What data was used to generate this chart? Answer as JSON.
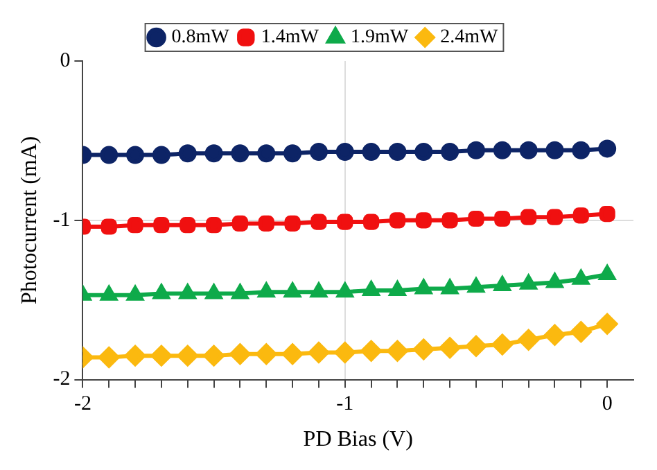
{
  "chart_data": {
    "type": "line",
    "xlabel": "PD Bias (V)",
    "ylabel": "Photocurrent (mA)",
    "x": [
      -2,
      -1.9,
      -1.8,
      -1.7,
      -1.6,
      -1.5,
      -1.4,
      -1.3,
      -1.2,
      -1.1,
      -1,
      -0.9,
      -0.8,
      -0.7,
      -0.6,
      -0.5,
      -0.4,
      -0.3,
      -0.2,
      -0.1,
      0
    ],
    "series": [
      {
        "name": "0.8mW",
        "color": "#0d2466",
        "marker": "circle",
        "values": [
          -0.59,
          -0.59,
          -0.59,
          -0.59,
          -0.58,
          -0.58,
          -0.58,
          -0.58,
          -0.58,
          -0.57,
          -0.57,
          -0.57,
          -0.57,
          -0.57,
          -0.57,
          -0.56,
          -0.56,
          -0.56,
          -0.56,
          -0.56,
          -0.55
        ]
      },
      {
        "name": "1.4mW",
        "color": "#f01010",
        "marker": "square",
        "values": [
          -1.04,
          -1.04,
          -1.03,
          -1.03,
          -1.03,
          -1.03,
          -1.02,
          -1.02,
          -1.02,
          -1.01,
          -1.01,
          -1.01,
          -1.0,
          -1.0,
          -1.0,
          -0.99,
          -0.99,
          -0.98,
          -0.98,
          -0.97,
          -0.96
        ]
      },
      {
        "name": "1.9mW",
        "color": "#0eaa4a",
        "marker": "triangle",
        "values": [
          -1.47,
          -1.47,
          -1.47,
          -1.46,
          -1.46,
          -1.46,
          -1.46,
          -1.45,
          -1.45,
          -1.45,
          -1.45,
          -1.44,
          -1.44,
          -1.43,
          -1.43,
          -1.42,
          -1.41,
          -1.4,
          -1.39,
          -1.37,
          -1.34
        ]
      },
      {
        "name": "2.4mW",
        "color": "#fbb90f",
        "marker": "diamond",
        "values": [
          -1.86,
          -1.86,
          -1.85,
          -1.85,
          -1.85,
          -1.85,
          -1.84,
          -1.84,
          -1.84,
          -1.83,
          -1.83,
          -1.82,
          -1.82,
          -1.81,
          -1.8,
          -1.79,
          -1.78,
          -1.75,
          -1.72,
          -1.7,
          -1.65
        ]
      }
    ],
    "xlim": [
      -2,
      0.1
    ],
    "xticks": [
      -2,
      {
        "value": -1.9,
        "label": null
      },
      {
        "value": -1.8,
        "label": null
      },
      {
        "value": -1.7,
        "label": null
      },
      {
        "value": -1.6,
        "label": null
      },
      {
        "value": -1.5,
        "label": null
      },
      {
        "value": -1.4,
        "label": null
      },
      {
        "value": -1.3,
        "label": null
      },
      {
        "value": -1.2,
        "label": null
      },
      {
        "value": -1.1,
        "label": null
      },
      -1,
      {
        "value": -0.9,
        "label": null
      },
      {
        "value": -0.8,
        "label": null
      },
      {
        "value": -0.7,
        "label": null
      },
      {
        "value": -0.6,
        "label": null
      },
      {
        "value": -0.5,
        "label": null
      },
      {
        "value": -0.4,
        "label": null
      },
      {
        "value": -0.3,
        "label": null
      },
      {
        "value": -0.2,
        "label": null
      },
      {
        "value": -0.1,
        "label": null
      },
      0
    ],
    "ylim": [
      -2,
      0
    ],
    "yticks": [
      -2,
      -1,
      0
    ],
    "grid": true,
    "legend": "top"
  }
}
